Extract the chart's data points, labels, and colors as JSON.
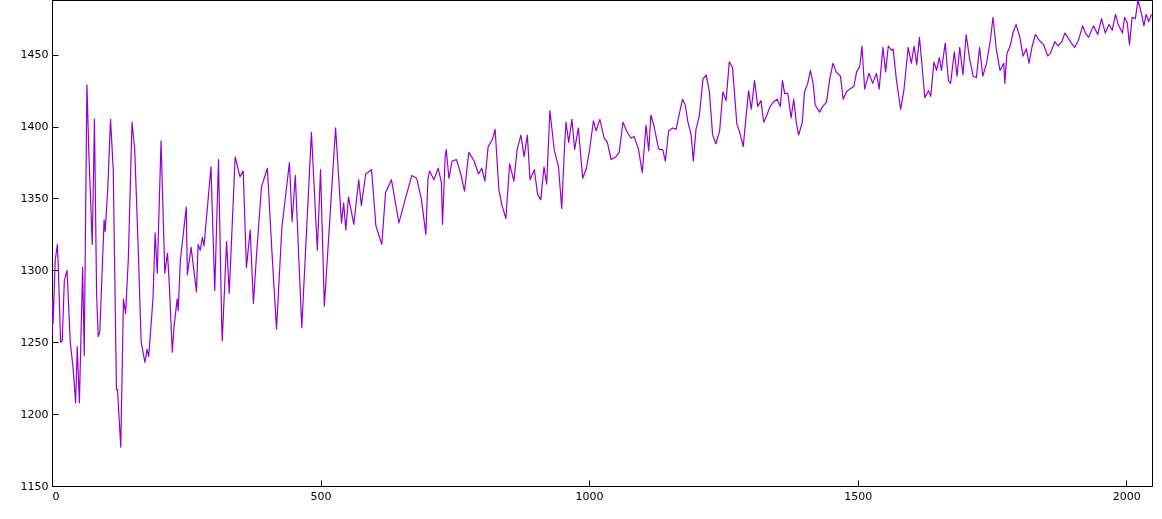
{
  "chart_data": {
    "type": "line",
    "xlim": [
      0,
      2048
    ],
    "ylim": [
      1150,
      1488
    ],
    "xticks": [
      0,
      500,
      1000,
      1500,
      2000
    ],
    "yticks": [
      1150,
      1200,
      1250,
      1300,
      1350,
      1400,
      1450
    ],
    "grid": false,
    "marker": "none",
    "line_style": "solid",
    "x": [
      0,
      1,
      2,
      6,
      10,
      12,
      16,
      19,
      23,
      28,
      34,
      39,
      44,
      47,
      51,
      57,
      60,
      65,
      69,
      75,
      79,
      83,
      86,
      89,
      97,
      99,
      104,
      109,
      114,
      120,
      122,
      128,
      133,
      137,
      142,
      149,
      154,
      160,
      166,
      173,
      177,
      180,
      188,
      192,
      196,
      203,
      210,
      215,
      218,
      224,
      227,
      233,
      235,
      239,
      250,
      252,
      259,
      269,
      272,
      276,
      280,
      283,
      296,
      303,
      310,
      316,
      317,
      325,
      330,
      341,
      350,
      356,
      362,
      369,
      375,
      381,
      390,
      401,
      409,
      418,
      428,
      435,
      442,
      447,
      453,
      465,
      483,
      494,
      500,
      507,
      528,
      539,
      543,
      547,
      552,
      562,
      571,
      576,
      584,
      595,
      603,
      614,
      621,
      632,
      646,
      658,
      670,
      679,
      688,
      696,
      700,
      703,
      711,
      719,
      725,
      727,
      732,
      734,
      739,
      745,
      753,
      761,
      768,
      776,
      786,
      794,
      800,
      806,
      812,
      820,
      825,
      832,
      838,
      845,
      852,
      860,
      866,
      873,
      879,
      885,
      890,
      898,
      904,
      910,
      916,
      921,
      927,
      935,
      943,
      949,
      954,
      957,
      962,
      968,
      973,
      980,
      988,
      995,
      1001,
      1008,
      1013,
      1020,
      1028,
      1034,
      1041,
      1050,
      1056,
      1063,
      1071,
      1078,
      1084,
      1092,
      1099,
      1106,
      1111,
      1115,
      1121,
      1129,
      1131,
      1137,
      1142,
      1148,
      1156,
      1162,
      1168,
      1174,
      1179,
      1184,
      1190,
      1194,
      1199,
      1205,
      1212,
      1218,
      1224,
      1230,
      1236,
      1243,
      1249,
      1255,
      1261,
      1267,
      1275,
      1281,
      1287,
      1293,
      1297,
      1302,
      1308,
      1314,
      1320,
      1325,
      1330,
      1337,
      1343,
      1350,
      1356,
      1360,
      1364,
      1370,
      1376,
      1381,
      1386,
      1390,
      1397,
      1401,
      1407,
      1412,
      1417,
      1421,
      1429,
      1435,
      1442,
      1448,
      1454,
      1460,
      1468,
      1473,
      1479,
      1485,
      1493,
      1498,
      1504,
      1508,
      1513,
      1521,
      1528,
      1535,
      1540,
      1547,
      1552,
      1557,
      1563,
      1566,
      1572,
      1580,
      1586,
      1594,
      1600,
      1605,
      1610,
      1615,
      1619,
      1625,
      1632,
      1636,
      1642,
      1647,
      1652,
      1656,
      1663,
      1669,
      1673,
      1680,
      1685,
      1690,
      1696,
      1702,
      1708,
      1715,
      1721,
      1727,
      1733,
      1740,
      1747,
      1752,
      1758,
      1765,
      1772,
      1774,
      1778,
      1784,
      1789,
      1795,
      1802,
      1808,
      1814,
      1819,
      1825,
      1831,
      1838,
      1846,
      1854,
      1859,
      1867,
      1873,
      1880,
      1886,
      1891,
      1898,
      1904,
      1911,
      1919,
      1924,
      1930,
      1939,
      1947,
      1954,
      1961,
      1968,
      1974,
      1980,
      1985,
      1993,
      1997,
      2002,
      2006,
      2011,
      2017,
      2022,
      2028,
      2033,
      2037,
      2042,
      2047
    ],
    "series": [
      {
        "color": "#9400d3",
        "values": [
          1255,
          1280,
          1263,
          1307,
          1318,
          1300,
          1250,
          1251,
          1293,
          1300,
          1250,
          1233,
          1208,
          1247,
          1208,
          1302,
          1241,
          1429,
          1377,
          1318,
          1405,
          1284,
          1254,
          1257,
          1335,
          1327,
          1358,
          1405,
          1370,
          1217,
          1217,
          1177,
          1280,
          1270,
          1307,
          1403,
          1384,
          1321,
          1250,
          1236,
          1245,
          1240,
          1280,
          1326,
          1298,
          1390,
          1298,
          1312,
          1293,
          1243,
          1260,
          1280,
          1272,
          1307,
          1344,
          1297,
          1316,
          1285,
          1318,
          1314,
          1323,
          1317,
          1372,
          1286,
          1377,
          1261,
          1251,
          1320,
          1284,
          1379,
          1365,
          1369,
          1302,
          1328,
          1277,
          1312,
          1358,
          1371,
          1316,
          1259,
          1330,
          1352,
          1375,
          1334,
          1366,
          1260,
          1396,
          1314,
          1370,
          1275,
          1399,
          1333,
          1347,
          1328,
          1351,
          1332,
          1363,
          1345,
          1367,
          1370,
          1331,
          1318,
          1354,
          1363,
          1333,
          1350,
          1366,
          1364,
          1349,
          1325,
          1364,
          1369,
          1363,
          1371,
          1361,
          1332,
          1379,
          1384,
          1364,
          1376,
          1377,
          1367,
          1355,
          1382,
          1376,
          1367,
          1371,
          1362,
          1386,
          1391,
          1398,
          1356,
          1345,
          1336,
          1374,
          1362,
          1384,
          1394,
          1379,
          1394,
          1363,
          1370,
          1353,
          1349,
          1372,
          1360,
          1411,
          1384,
          1372,
          1343,
          1384,
          1403,
          1389,
          1405,
          1384,
          1399,
          1364,
          1371,
          1384,
          1404,
          1397,
          1405,
          1392,
          1389,
          1377,
          1379,
          1382,
          1403,
          1396,
          1392,
          1393,
          1384,
          1368,
          1401,
          1383,
          1408,
          1400,
          1385,
          1384,
          1384,
          1376,
          1397,
          1399,
          1398,
          1409,
          1419,
          1415,
          1403,
          1394,
          1376,
          1398,
          1407,
          1433,
          1436,
          1424,
          1394,
          1388,
          1397,
          1424,
          1418,
          1445,
          1441,
          1402,
          1395,
          1386,
          1410,
          1425,
          1412,
          1432,
          1414,
          1418,
          1403,
          1407,
          1414,
          1417,
          1419,
          1414,
          1432,
          1423,
          1423,
          1406,
          1419,
          1402,
          1394,
          1403,
          1424,
          1430,
          1439,
          1430,
          1415,
          1410,
          1414,
          1417,
          1433,
          1444,
          1438,
          1435,
          1419,
          1424,
          1426,
          1428,
          1438,
          1442,
          1456,
          1426,
          1437,
          1430,
          1437,
          1426,
          1455,
          1438,
          1456,
          1453,
          1454,
          1433,
          1412,
          1425,
          1455,
          1444,
          1456,
          1443,
          1462,
          1446,
          1420,
          1425,
          1421,
          1445,
          1439,
          1448,
          1439,
          1458,
          1432,
          1430,
          1452,
          1435,
          1455,
          1436,
          1464,
          1448,
          1435,
          1434,
          1455,
          1435,
          1444,
          1460,
          1476,
          1454,
          1439,
          1444,
          1430,
          1451,
          1456,
          1465,
          1471,
          1462,
          1449,
          1454,
          1444,
          1456,
          1464,
          1460,
          1457,
          1449,
          1451,
          1459,
          1456,
          1459,
          1465,
          1462,
          1458,
          1455,
          1460,
          1470,
          1465,
          1462,
          1470,
          1464,
          1475,
          1465,
          1471,
          1467,
          1478,
          1471,
          1465,
          1476,
          1472,
          1457,
          1476,
          1475,
          1488,
          1479,
          1470,
          1478,
          1473,
          1478
        ]
      }
    ]
  }
}
